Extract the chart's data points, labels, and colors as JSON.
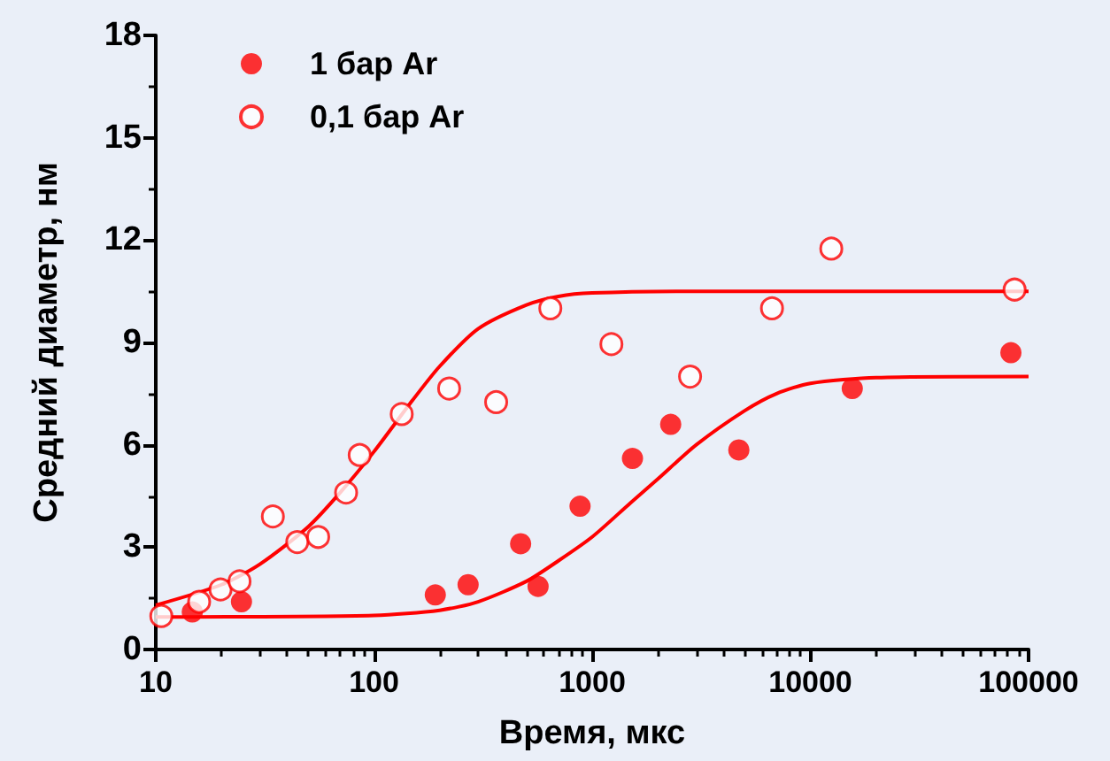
{
  "chart_data": {
    "type": "scatter",
    "xlabel": "Время, мкс",
    "ylabel": "Средний диаметр, нм",
    "log": "x",
    "xlim": [
      10,
      100000
    ],
    "xticks": [
      10,
      100,
      {
        "value": 1000,
        "label": "1000"
      },
      {
        "value": 10000,
        "label": "10000"
      },
      {
        "value": 100000,
        "label": "100000"
      }
    ],
    "ylim": [
      0,
      18
    ],
    "yticks": [
      0,
      3,
      6,
      9,
      12,
      15,
      18
    ],
    "grid": false,
    "legend": "top left",
    "marker": "circle",
    "series": [
      {
        "name": "1 бар Ar",
        "color": "#ff0000",
        "x": [
          14.7,
          24.7,
          191,
          270,
          470,
          565,
          880,
          1530,
          2290,
          4700,
          15560,
          83000
        ],
        "values": [
          1.1,
          1.4,
          1.6,
          1.9,
          3.1,
          1.85,
          4.2,
          5.6,
          6.6,
          5.85,
          7.65,
          8.7
        ]
      },
      {
        "name": "0,1 бар Ar",
        "color": "#ff0000",
        "x": [
          10.6,
          15.8,
          19.8,
          24.2,
          34.4,
          44.5,
          55.5,
          74.5,
          86,
          134,
          221,
          363,
          643,
          1225,
          2810,
          6670,
          12470,
          86300
        ],
        "values": [
          0.98,
          1.4,
          1.76,
          2.0,
          3.9,
          3.15,
          3.3,
          4.6,
          5.7,
          6.9,
          7.65,
          7.25,
          10.0,
          8.95,
          8.0,
          10.0,
          11.75,
          10.55
        ]
      },
      {
        "type": "line",
        "color": "#ff0000",
        "marker": "none",
        "line_style": "solid",
        "x": [
          10,
          100,
          200,
          300,
          500,
          700,
          1000,
          1500,
          2000,
          3000,
          5000,
          7000,
          10000,
          20000,
          100000
        ],
        "values": [
          0.95,
          1.0,
          1.15,
          1.4,
          2.0,
          2.6,
          3.3,
          4.3,
          5.0,
          6.0,
          7.0,
          7.5,
          7.8,
          7.97,
          8.0
        ]
      },
      {
        "type": "line",
        "color": "#ff0000",
        "marker": "none",
        "line_style": "solid",
        "x": [
          10,
          20,
          30,
          50,
          70,
          100,
          150,
          200,
          300,
          500,
          700,
          1000,
          3000,
          100000
        ],
        "values": [
          1.3,
          1.9,
          2.5,
          3.6,
          4.6,
          5.8,
          7.3,
          8.3,
          9.4,
          10.1,
          10.35,
          10.45,
          10.5,
          10.5
        ]
      }
    ]
  }
}
